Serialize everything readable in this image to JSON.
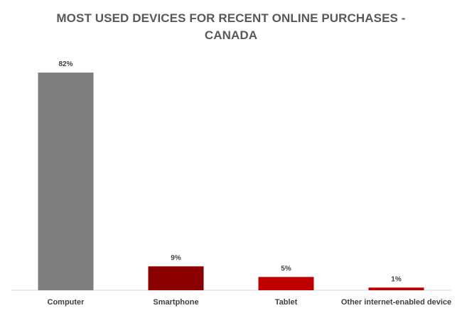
{
  "chart_data": {
    "type": "bar",
    "title": "MOST USED DEVICES FOR RECENT ONLINE PURCHASES - CANADA",
    "categories": [
      "Computer",
      "Smartphone",
      "Tablet",
      "Other internet-enabled device"
    ],
    "values": [
      82,
      9,
      5,
      1
    ],
    "data_labels": [
      "82%",
      "9%",
      "5%",
      "1%"
    ],
    "colors": [
      "#7f7f7f",
      "#8b0000",
      "#c00000",
      "#c00000"
    ],
    "xlabel": "",
    "ylabel": "",
    "ylim": [
      0,
      82
    ],
    "grid": false,
    "legend": "none"
  }
}
